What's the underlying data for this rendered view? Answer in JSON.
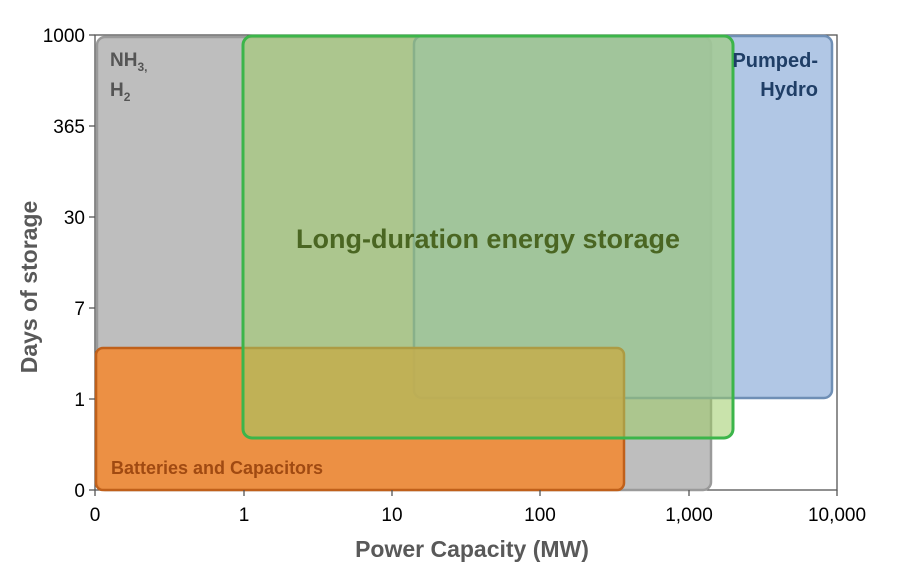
{
  "chart_data": {
    "type": "area",
    "title": "",
    "xlabel": "Power Capacity (MW)",
    "ylabel": "Days of storage",
    "x_ticks": [
      "0",
      "1",
      "10",
      "100",
      "1,000",
      "10,000"
    ],
    "y_ticks": [
      "0",
      "1",
      "7",
      "30",
      "365",
      "1000"
    ],
    "grid": false,
    "legend": "none",
    "annotation": "Long-duration energy storage",
    "regions": [
      {
        "name": "NH3, H2",
        "label_line1": "NH",
        "label_sub1": "3,",
        "label_line2": "H",
        "label_sub2": "2",
        "x_range": [
          "0",
          "1,000"
        ],
        "y_range": [
          "0",
          "1000"
        ],
        "color": "#b3b3b3"
      },
      {
        "name": "Pumped-Hydro",
        "label_line1": "Pumped-",
        "label_line2": "Hydro",
        "x_range": [
          "10",
          "10,000"
        ],
        "y_range": [
          "1",
          "1000"
        ],
        "color": "#a3bde0"
      },
      {
        "name": "Batteries and Capacitors",
        "label_line1": "Batteries and Capacitors",
        "x_range": [
          "0",
          "100"
        ],
        "y_range": [
          "0",
          "1"
        ],
        "color": "#f28a33"
      },
      {
        "name": "Long-duration energy storage",
        "x_range": [
          "1",
          "1,000"
        ],
        "y_range": [
          "0",
          "1000"
        ],
        "color": "#8cc466"
      }
    ]
  }
}
